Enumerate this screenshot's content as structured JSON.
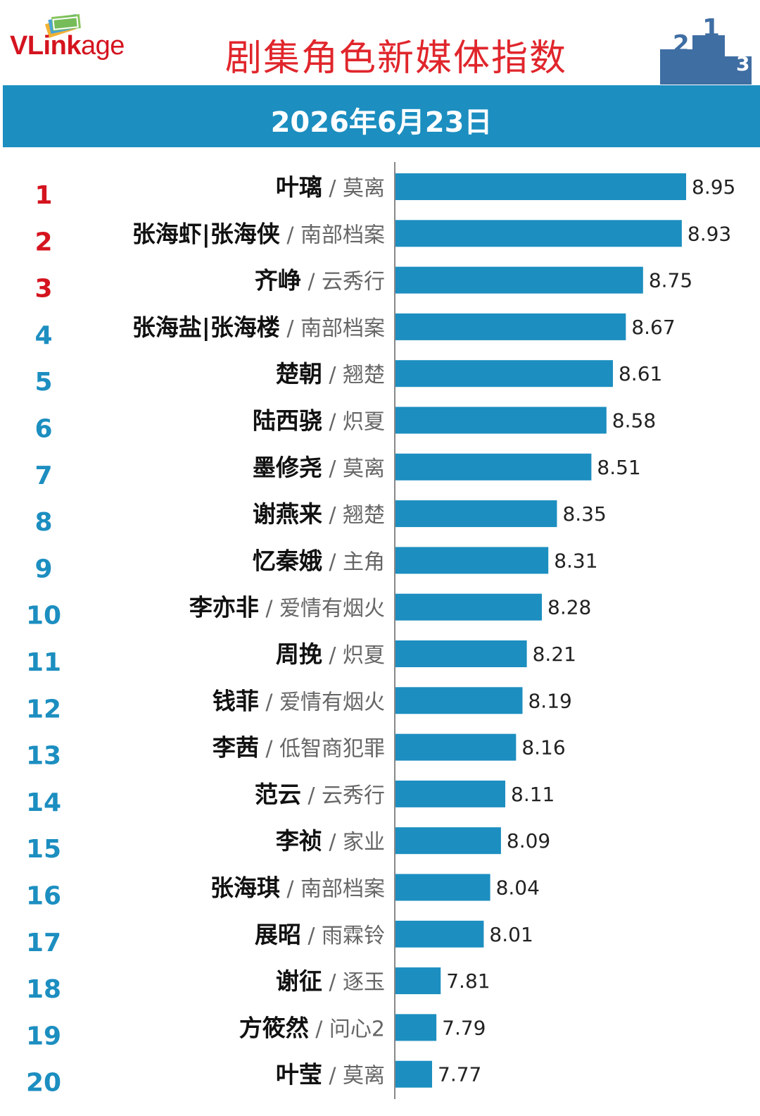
{
  "header": {
    "logo_bold": "VLink",
    "logo_rest": "age",
    "title": "剧集角色新媒体指数",
    "date": "2026年6月23日"
  },
  "colors": {
    "bar": "#1c8ec0",
    "rank_top3": "#d4141f",
    "rank_other": "#1c8ec0",
    "title": "#e0262c",
    "podium": "#3f6ea3"
  },
  "icons": {
    "logo": "stacked-cards-icon",
    "podium": "podium-icon",
    "podium_labels": [
      "2",
      "1",
      "3"
    ]
  },
  "chart_data": {
    "type": "bar",
    "orientation": "horizontal",
    "title": "剧集角色新媒体指数",
    "subtitle": "2026年6月23日",
    "rows": [
      {
        "rank": "1",
        "role": "叶璃",
        "drama": "莫离",
        "value": 8.95
      },
      {
        "rank": "2",
        "role": "张海虾|张海侠",
        "drama": "南部档案",
        "value": 8.93
      },
      {
        "rank": "3",
        "role": "齐峥",
        "drama": "云秀行",
        "value": 8.75
      },
      {
        "rank": "4",
        "role": "张海盐|张海楼",
        "drama": "南部档案",
        "value": 8.67
      },
      {
        "rank": "5",
        "role": "楚朝",
        "drama": "翘楚",
        "value": 8.61
      },
      {
        "rank": "6",
        "role": "陆西骁",
        "drama": "炽夏",
        "value": 8.58
      },
      {
        "rank": "7",
        "role": "墨修尧",
        "drama": "莫离",
        "value": 8.51
      },
      {
        "rank": "8",
        "role": "谢燕来",
        "drama": "翘楚",
        "value": 8.35
      },
      {
        "rank": "9",
        "role": "忆秦娥",
        "drama": "主角",
        "value": 8.31
      },
      {
        "rank": "10",
        "role": "李亦非",
        "drama": "爱情有烟火",
        "value": 8.28
      },
      {
        "rank": "11",
        "role": "周挽",
        "drama": "炽夏",
        "value": 8.21
      },
      {
        "rank": "12",
        "role": "钱菲",
        "drama": "爱情有烟火",
        "value": 8.19
      },
      {
        "rank": "13",
        "role": "李茜",
        "drama": "低智商犯罪",
        "value": 8.16
      },
      {
        "rank": "14",
        "role": "范云",
        "drama": "云秀行",
        "value": 8.11
      },
      {
        "rank": "15",
        "role": "李祯",
        "drama": "家业",
        "value": 8.09
      },
      {
        "rank": "16",
        "role": "张海琪",
        "drama": "南部档案",
        "value": 8.04
      },
      {
        "rank": "17",
        "role": "展昭",
        "drama": "雨霖铃",
        "value": 8.01
      },
      {
        "rank": "18",
        "role": "谢征",
        "drama": "逐玉",
        "value": 7.81
      },
      {
        "rank": "19",
        "role": "方筱然",
        "drama": "问心2",
        "value": 7.79
      },
      {
        "rank": "20",
        "role": "叶莹",
        "drama": "莫离",
        "value": 7.77
      }
    ],
    "separator": "/",
    "xlim": [
      7.6,
      8.95
    ],
    "grid": false,
    "legend": "none"
  }
}
